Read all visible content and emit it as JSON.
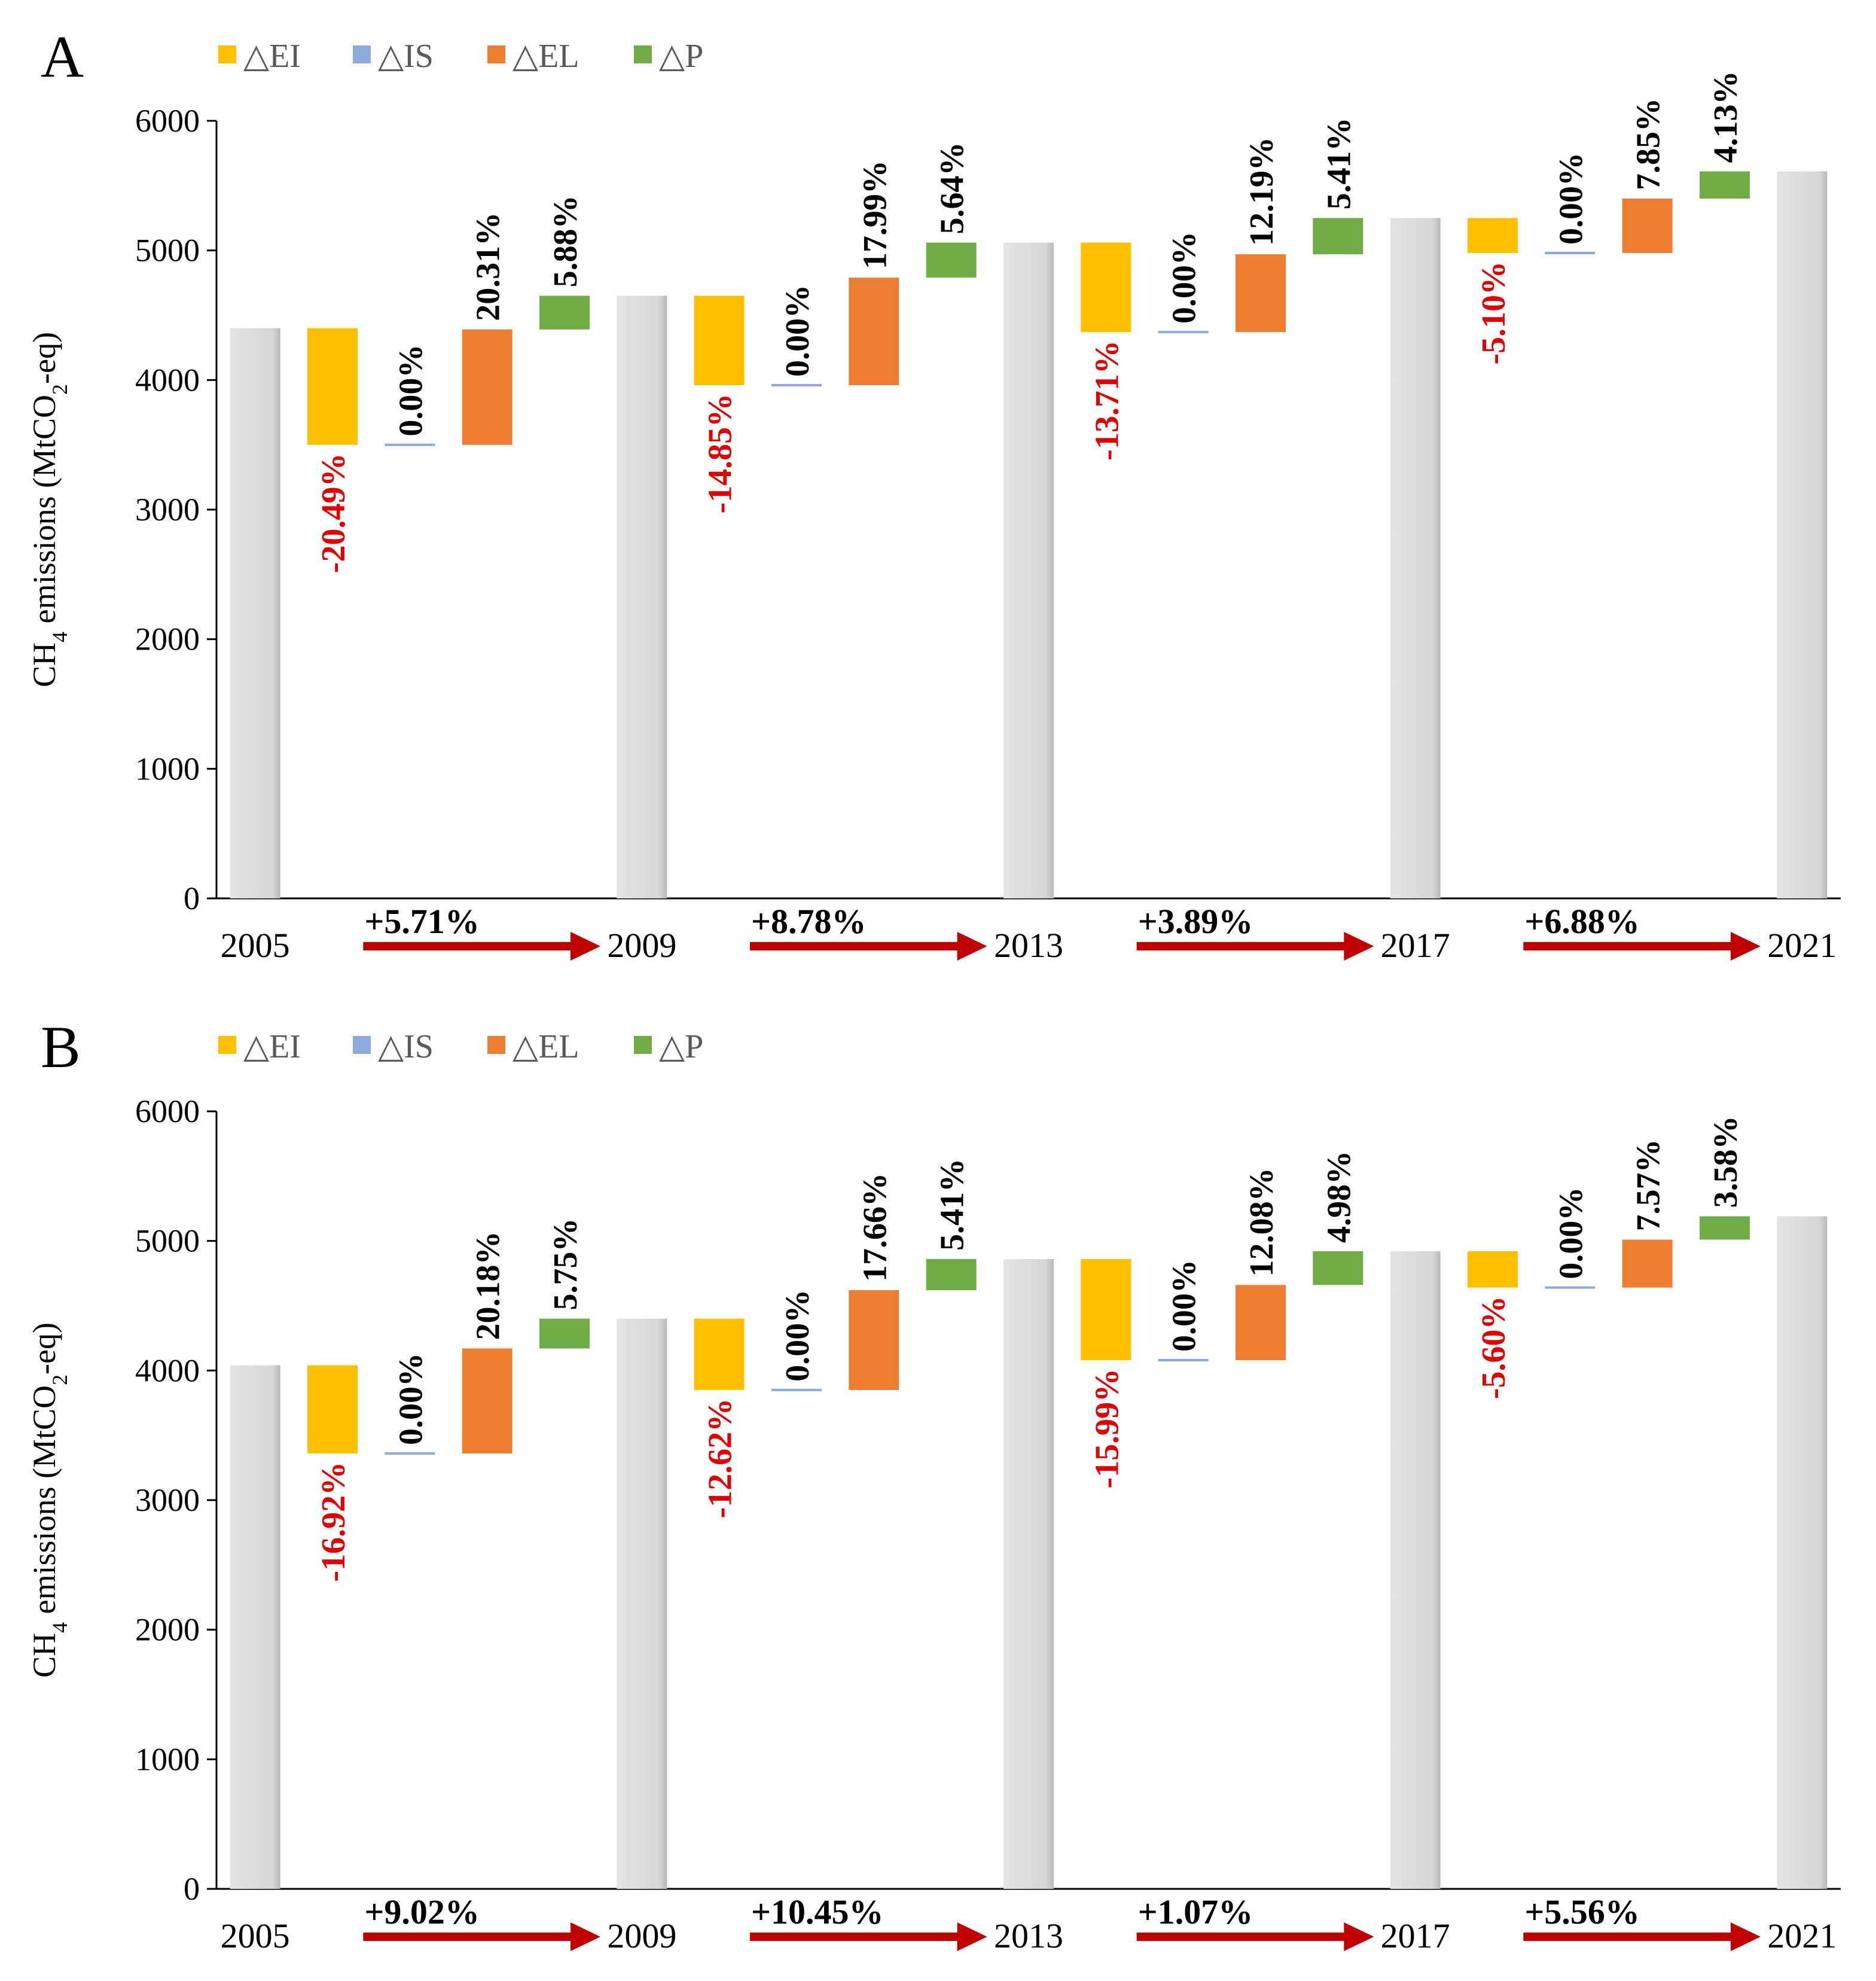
{
  "legend": {
    "items": [
      {
        "label": "△EI",
        "color": "#FFC000"
      },
      {
        "label": "△IS",
        "color": "#8EA9DB"
      },
      {
        "label": "△EL",
        "color": "#ED7D31"
      },
      {
        "label": "△P",
        "color": "#70AD47"
      }
    ]
  },
  "colors": {
    "total": "#D9D9D9",
    "positive_label": "#000000",
    "negative_label": "#E00000",
    "arrow": "#C00000",
    "axis": "#000000"
  },
  "chart_data": [
    {
      "panel_label": "A",
      "type": "bar",
      "subtype": "waterfall",
      "ylabel": "CH4 emissions (MtCO2-eq)",
      "ylabel_parts": [
        "CH",
        "4",
        " emissions (MtCO",
        "2",
        "-eq)"
      ],
      "ylim": [
        0,
        6000
      ],
      "yticks": [
        0,
        1000,
        2000,
        3000,
        4000,
        5000,
        6000
      ],
      "years": [
        "2005",
        "2009",
        "2013",
        "2017",
        "2021"
      ],
      "totals": [
        4400,
        4650,
        5060,
        5250,
        5610
      ],
      "periods": [
        {
          "growth": "+5.71%",
          "effects": [
            {
              "factor": "△EI",
              "start": 4400,
              "end": 3500,
              "label": "-20.49%"
            },
            {
              "factor": "△IS",
              "start": 3500,
              "end": 3500,
              "label": "0.00%"
            },
            {
              "factor": "△EL",
              "start": 3500,
              "end": 4390,
              "label": "20.31%"
            },
            {
              "factor": "△P",
              "start": 4390,
              "end": 4650,
              "label": "5.88%"
            }
          ]
        },
        {
          "growth": "+8.78%",
          "effects": [
            {
              "factor": "△EI",
              "start": 4650,
              "end": 3960,
              "label": "-14.85%"
            },
            {
              "factor": "△IS",
              "start": 3960,
              "end": 3960,
              "label": "0.00%"
            },
            {
              "factor": "△EL",
              "start": 3960,
              "end": 4790,
              "label": "17.99%"
            },
            {
              "factor": "△P",
              "start": 4790,
              "end": 5060,
              "label": "5.64%"
            }
          ]
        },
        {
          "growth": "+3.89%",
          "effects": [
            {
              "factor": "△EI",
              "start": 5060,
              "end": 4370,
              "label": "-13.71%"
            },
            {
              "factor": "△IS",
              "start": 4370,
              "end": 4370,
              "label": "0.00%"
            },
            {
              "factor": "△EL",
              "start": 4370,
              "end": 4970,
              "label": "12.19%"
            },
            {
              "factor": "△P",
              "start": 4970,
              "end": 5250,
              "label": "5.41%"
            }
          ]
        },
        {
          "growth": "+6.88%",
          "effects": [
            {
              "factor": "△EI",
              "start": 5250,
              "end": 4980,
              "label": "-5.10%"
            },
            {
              "factor": "△IS",
              "start": 4980,
              "end": 4980,
              "label": "0.00%"
            },
            {
              "factor": "△EL",
              "start": 4980,
              "end": 5400,
              "label": "7.85%"
            },
            {
              "factor": "△P",
              "start": 5400,
              "end": 5610,
              "label": "4.13%"
            }
          ]
        }
      ]
    },
    {
      "panel_label": "B",
      "type": "bar",
      "subtype": "waterfall",
      "ylabel": "CH4 emissions (MtCO2-eq)",
      "ylabel_parts": [
        "CH",
        "4",
        " emissions (MtCO",
        "2",
        "-eq)"
      ],
      "ylim": [
        0,
        6000
      ],
      "yticks": [
        0,
        1000,
        2000,
        3000,
        4000,
        5000,
        6000
      ],
      "years": [
        "2005",
        "2009",
        "2013",
        "2017",
        "2021"
      ],
      "totals": [
        4040,
        4400,
        4860,
        4920,
        5190
      ],
      "periods": [
        {
          "growth": "+9.02%",
          "effects": [
            {
              "factor": "△EI",
              "start": 4040,
              "end": 3360,
              "label": "-16.92%"
            },
            {
              "factor": "△IS",
              "start": 3360,
              "end": 3360,
              "label": "0.00%"
            },
            {
              "factor": "△EL",
              "start": 3360,
              "end": 4170,
              "label": "20.18%"
            },
            {
              "factor": "△P",
              "start": 4170,
              "end": 4400,
              "label": "5.75%"
            }
          ]
        },
        {
          "growth": "+10.45%",
          "effects": [
            {
              "factor": "△EI",
              "start": 4400,
              "end": 3850,
              "label": "-12.62%"
            },
            {
              "factor": "△IS",
              "start": 3850,
              "end": 3850,
              "label": "0.00%"
            },
            {
              "factor": "△EL",
              "start": 3850,
              "end": 4620,
              "label": "17.66%"
            },
            {
              "factor": "△P",
              "start": 4620,
              "end": 4860,
              "label": "5.41%"
            }
          ]
        },
        {
          "growth": "+1.07%",
          "effects": [
            {
              "factor": "△EI",
              "start": 4860,
              "end": 4080,
              "label": "-15.99%"
            },
            {
              "factor": "△IS",
              "start": 4080,
              "end": 4080,
              "label": "0.00%"
            },
            {
              "factor": "△EL",
              "start": 4080,
              "end": 4660,
              "label": "12.08%"
            },
            {
              "factor": "△P",
              "start": 4660,
              "end": 4920,
              "label": "4.98%"
            }
          ]
        },
        {
          "growth": "+5.56%",
          "effects": [
            {
              "factor": "△EI",
              "start": 4920,
              "end": 4640,
              "label": "-5.60%"
            },
            {
              "factor": "△IS",
              "start": 4640,
              "end": 4640,
              "label": "0.00%"
            },
            {
              "factor": "△EL",
              "start": 4640,
              "end": 5010,
              "label": "7.57%"
            },
            {
              "factor": "△P",
              "start": 5010,
              "end": 5190,
              "label": "3.58%"
            }
          ]
        }
      ]
    }
  ]
}
